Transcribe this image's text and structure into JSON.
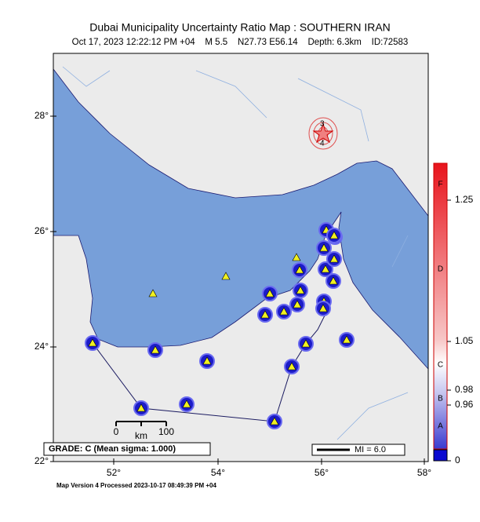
{
  "header": {
    "title": "Dubai Municipality Uncertainty Ratio Map : SOUTHERN IRAN",
    "subtitle": "Oct 17, 2023 12:22:12 PM +04    M 5.5    N27.73 E56.14    Depth: 6.3km    ID:72583"
  },
  "axes": {
    "lat_labels": [
      "28°",
      "26°",
      "24°",
      "22°"
    ],
    "lon_labels": [
      "52°",
      "54°",
      "56°",
      "58°"
    ]
  },
  "colorbar": {
    "letters": [
      "F",
      "D",
      "C",
      "B",
      "A"
    ],
    "ticks": [
      "1.25",
      "1.05",
      "0.98",
      "0.96",
      "0"
    ]
  },
  "legend": {
    "grade": "GRADE: C (Mean sigma: 1.000)",
    "scale_labels": [
      "0",
      "100",
      "km"
    ],
    "mi": "MI = 6.0"
  },
  "epicenter_labels": [
    "3",
    "4"
  ],
  "footer": "Map Version 4 Processed 2023-10-17 08:49:39 PM +04"
}
